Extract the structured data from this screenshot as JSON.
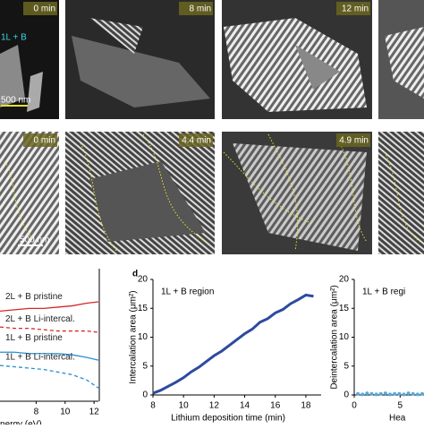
{
  "images": [
    {
      "time": "0 min",
      "label": "1L + B",
      "scale": "500 nm"
    },
    {
      "time": "8 min"
    },
    {
      "time": "12 min"
    },
    {
      "time": "0 min",
      "scale": "500 nm"
    },
    {
      "time": "4.4 min"
    },
    {
      "time": "4.9 min"
    }
  ],
  "chart_data": [
    {
      "type": "line",
      "xlabel": "nergy (eV)",
      "xlim": [
        5.5,
        12.3
      ],
      "xticks": [
        8,
        10,
        12
      ],
      "ylim": [
        0,
        1
      ],
      "x": [
        5.5,
        6.5,
        7.5,
        8.5,
        9.5,
        10.5,
        11.5,
        12.3
      ],
      "series": [
        {
          "name": "2L + B pristine",
          "color": "#d62728",
          "dash": false,
          "values": [
            0.68,
            0.69,
            0.7,
            0.7,
            0.71,
            0.72,
            0.74,
            0.75
          ]
        },
        {
          "name": "2L + B Li-intercal.",
          "color": "#d62728",
          "dash": true,
          "values": [
            0.56,
            0.55,
            0.55,
            0.54,
            0.53,
            0.53,
            0.53,
            0.52
          ]
        },
        {
          "name": "1L + B pristine",
          "color": "#2a8fd0",
          "dash": false,
          "values": [
            0.37,
            0.37,
            0.36,
            0.36,
            0.36,
            0.35,
            0.33,
            0.31
          ]
        },
        {
          "name": "1L + B Li-intercal.",
          "color": "#2a8fd0",
          "dash": true,
          "values": [
            0.27,
            0.26,
            0.25,
            0.24,
            0.22,
            0.2,
            0.16,
            0.1
          ]
        }
      ]
    },
    {
      "type": "line",
      "panel": "d",
      "annotation": "1L + B region",
      "xlabel": "Lithium deposition time (min)",
      "ylabel": "Intercalation area (μm²)",
      "xlim": [
        8,
        19
      ],
      "xticks": [
        8,
        10,
        12,
        14,
        16,
        18
      ],
      "ylim": [
        0,
        20
      ],
      "yticks": [
        0,
        5,
        10,
        15,
        20
      ],
      "x": [
        8,
        8.5,
        9,
        9.5,
        10,
        10.5,
        11,
        11.5,
        12,
        12.5,
        13,
        13.5,
        14,
        14.5,
        15,
        15.5,
        16,
        16.5,
        17,
        17.5,
        18,
        18.5
      ],
      "series": [
        {
          "color": "#2e4a9e",
          "values": [
            0.3,
            0.8,
            1.5,
            2.2,
            3,
            4,
            4.8,
            5.8,
            6.8,
            7.6,
            8.6,
            9.6,
            10.6,
            11.4,
            12.6,
            13.2,
            14.2,
            14.8,
            15.8,
            16.5,
            17.3,
            17.1
          ]
        }
      ]
    },
    {
      "type": "scatter",
      "annotation": "1L + B regi",
      "xlabel": "Hea",
      "ylabel": "Deintercalation area (μm²)",
      "xlim": [
        0,
        7.6
      ],
      "xticks": [
        0,
        5
      ],
      "ylim": [
        0,
        20
      ],
      "yticks": [
        0,
        5,
        10,
        15,
        20
      ],
      "x": [
        0.4,
        0.9,
        1.4,
        1.9,
        2.4,
        2.9,
        3.4,
        3.9,
        4.4,
        4.9,
        5.4,
        5.9,
        6.4,
        6.9,
        7.4
      ],
      "series": [
        {
          "color": "#5ba8d8",
          "values": [
            0.2,
            0.1,
            0.3,
            0.2,
            0.1,
            0.2,
            0.3,
            0.1,
            0.2,
            0.2,
            0.1,
            0.3,
            0.2,
            0.1,
            0.2
          ]
        }
      ]
    }
  ]
}
